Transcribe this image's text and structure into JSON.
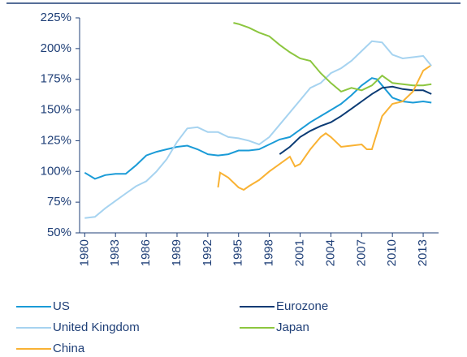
{
  "chart_data": {
    "type": "line",
    "xlim": [
      1979.5,
      2014.5
    ],
    "xticks": [
      1980,
      1983,
      1986,
      1989,
      1992,
      1995,
      1998,
      2001,
      2004,
      2007,
      2010,
      2013
    ],
    "ylim": [
      50,
      225
    ],
    "yticks": [
      {
        "value": 50,
        "label": "50%"
      },
      {
        "value": 75,
        "label": "75%"
      },
      {
        "value": 100,
        "label": "100%"
      },
      {
        "value": 125,
        "label": "125%"
      },
      {
        "value": 150,
        "label": "150%"
      },
      {
        "value": 175,
        "label": "175%"
      },
      {
        "value": 200,
        "label": "200%"
      },
      {
        "value": 225,
        "label": "225%"
      }
    ],
    "series": [
      {
        "name": "US",
        "color": "#1a9bd7",
        "x": [
          1980,
          1981,
          1982,
          1983,
          1984,
          1985,
          1986,
          1987,
          1988,
          1989,
          1990,
          1991,
          1992,
          1993,
          1994,
          1995,
          1996,
          1997,
          1998,
          1999,
          2000,
          2001,
          2002,
          2003,
          2004,
          2005,
          2006,
          2007,
          2008,
          2008.5,
          2009,
          2010,
          2011,
          2012,
          2013,
          2013.8
        ],
        "values": [
          99,
          94,
          97,
          98,
          98,
          105,
          113,
          116,
          118,
          120,
          121,
          118,
          114,
          113,
          114,
          117,
          117,
          118,
          122,
          126,
          128,
          134,
          140,
          145,
          150,
          155,
          162,
          170,
          176,
          175,
          170,
          160,
          157,
          156,
          157,
          156
        ]
      },
      {
        "name": "Eurozone",
        "color": "#0b3b74",
        "x": [
          1999,
          2000,
          2001,
          2002,
          2003,
          2004,
          2005,
          2006,
          2007,
          2008,
          2009,
          2010,
          2011,
          2012,
          2013,
          2013.8
        ],
        "values": [
          114,
          120,
          128,
          133,
          137,
          140,
          145,
          151,
          157,
          163,
          168,
          169,
          167,
          166,
          166,
          163
        ]
      },
      {
        "name": "United Kingdom",
        "color": "#a6d3f0",
        "x": [
          1980,
          1981,
          1982,
          1983,
          1984,
          1985,
          1986,
          1987,
          1988,
          1989,
          1990,
          1991,
          1992,
          1993,
          1994,
          1995,
          1996,
          1997,
          1998,
          1999,
          2000,
          2001,
          2002,
          2003,
          2004,
          2005,
          2006,
          2007,
          2008,
          2009,
          2010,
          2011,
          2012,
          2013,
          2013.8
        ],
        "values": [
          62,
          63,
          70,
          76,
          82,
          88,
          92,
          100,
          110,
          124,
          135,
          136,
          132,
          132,
          128,
          127,
          125,
          122,
          128,
          138,
          148,
          158,
          168,
          172,
          180,
          184,
          190,
          198,
          206,
          205,
          195,
          192,
          193,
          194,
          186
        ]
      },
      {
        "name": "Japan",
        "color": "#8cc63f",
        "x": [
          1994.5,
          1995,
          1996,
          1997,
          1998,
          1999,
          2000,
          2001,
          2002,
          2003,
          2004,
          2005,
          2006,
          2007,
          2008,
          2009,
          2010,
          2011,
          2012,
          2013,
          2013.8
        ],
        "values": [
          221,
          220,
          217,
          213,
          210,
          203,
          197,
          192,
          190,
          180,
          172,
          165,
          168,
          166,
          170,
          178,
          172,
          171,
          170,
          170,
          171
        ]
      },
      {
        "name": "China",
        "color": "#f9b233",
        "x": [
          1993,
          1993.2,
          1994,
          1995,
          1995.5,
          1996,
          1997,
          1998,
          1999,
          2000,
          2000.5,
          2001,
          2002,
          2003,
          2003.5,
          2004,
          2005,
          2006,
          2007,
          2007.5,
          2008,
          2009,
          2010,
          2011,
          2012,
          2013,
          2013.7
        ],
        "values": [
          87,
          99,
          95,
          87,
          85,
          88,
          93,
          100,
          106,
          112,
          104,
          106,
          118,
          128,
          131,
          128,
          120,
          121,
          122,
          118,
          118,
          145,
          155,
          157,
          165,
          182,
          186
        ]
      }
    ]
  }
}
